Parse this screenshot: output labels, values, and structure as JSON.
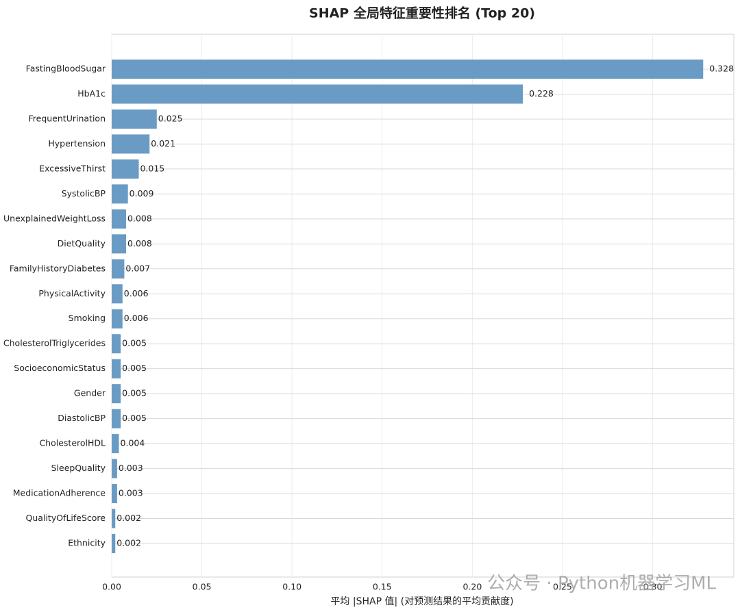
{
  "chart_data": {
    "type": "barh",
    "title": "SHAP 全局特征重要性排名 (Top 20)",
    "xlabel": "平均 |SHAP 值| (对预测结果的平均贡献度)",
    "watermark": "公众号 · Python机器学习ML",
    "categories": [
      "FastingBloodSugar",
      "HbA1c",
      "FrequentUrination",
      "Hypertension",
      "ExcessiveThirst",
      "SystolicBP",
      "UnexplainedWeightLoss",
      "DietQuality",
      "FamilyHistoryDiabetes",
      "PhysicalActivity",
      "Smoking",
      "CholesterolTriglycerides",
      "SocioeconomicStatus",
      "Gender",
      "DiastolicBP",
      "CholesterolHDL",
      "SleepQuality",
      "MedicationAdherence",
      "QualityOfLifeScore",
      "Ethnicity"
    ],
    "values": [
      0.328,
      0.228,
      0.025,
      0.021,
      0.015,
      0.009,
      0.008,
      0.008,
      0.007,
      0.006,
      0.006,
      0.005,
      0.005,
      0.005,
      0.005,
      0.004,
      0.003,
      0.003,
      0.002,
      0.002
    ],
    "color": "#6a9bc4",
    "xlim": [
      0,
      0.345
    ],
    "xticks": [
      {
        "value": 0,
        "label": "0.00"
      },
      0.05,
      {
        "value": 0.1,
        "label": "0.10"
      },
      0.15,
      {
        "value": 0.2,
        "label": "0.20"
      },
      0.25,
      {
        "value": 0.3,
        "label": "0.30"
      }
    ],
    "grid": true
  }
}
